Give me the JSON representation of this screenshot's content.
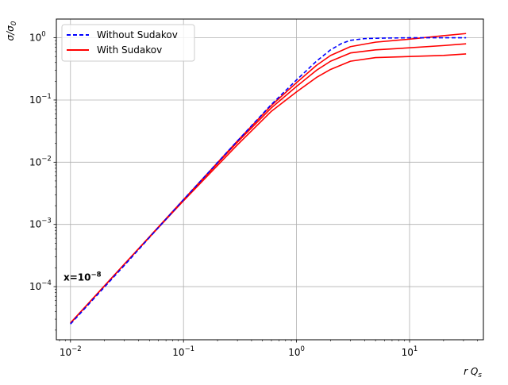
{
  "chart_data": {
    "type": "line",
    "xscale": "log",
    "yscale": "log",
    "xlim": [
      0.0075,
      45
    ],
    "ylim": [
      1.4e-05,
      2.0
    ],
    "grid": true,
    "xlabel": "r Q_s",
    "ylabel": "σ/σ_0",
    "x_ticks": [
      {
        "value": 0.01,
        "label": "10",
        "exp": "−2"
      },
      {
        "value": 0.1,
        "label": "10",
        "exp": "−1"
      },
      {
        "value": 1,
        "label": "10",
        "exp": "0"
      },
      {
        "value": 10,
        "label": "10",
        "exp": "1"
      }
    ],
    "y_ticks": [
      {
        "value": 0.0001,
        "label": "10",
        "exp": "−4"
      },
      {
        "value": 0.001,
        "label": "10",
        "exp": "−3"
      },
      {
        "value": 0.01,
        "label": "10",
        "exp": "−2"
      },
      {
        "value": 0.1,
        "label": "10",
        "exp": "−1"
      },
      {
        "value": 1,
        "label": "10",
        "exp": "0"
      }
    ],
    "legend": {
      "position": "upper-left",
      "entries": [
        {
          "label": "Without Sudakov",
          "color": "#0000ff",
          "style": "dashed"
        },
        {
          "label": "With Sudakov",
          "color": "#ff0000",
          "style": "solid"
        }
      ]
    },
    "annotation": {
      "text": "x=10",
      "exp": "−8",
      "at": [
        0.008,
        0.00014
      ]
    },
    "series": [
      {
        "name": "Without Sudakov",
        "color": "#0000ff",
        "style": "dashed",
        "x": [
          0.01,
          0.03,
          0.1,
          0.3,
          0.6,
          1.0,
          1.5,
          2.0,
          2.5,
          3.0,
          4.0,
          6.0,
          10.0,
          20.0,
          31.6
        ],
        "y": [
          2.5e-05,
          0.00022,
          0.0025,
          0.022,
          0.085,
          0.21,
          0.42,
          0.64,
          0.81,
          0.91,
          0.97,
          0.99,
          1.0,
          1.0,
          1.0
        ]
      },
      {
        "color": "#ff0000",
        "style": "solid",
        "x": [
          0.01,
          0.03,
          0.1,
          0.3,
          0.6,
          1.0,
          1.5,
          2.0,
          3.0,
          5.0,
          10.0,
          20.0,
          31.6
        ],
        "y": [
          2.6e-05,
          0.00023,
          0.0025,
          0.022,
          0.082,
          0.19,
          0.36,
          0.52,
          0.72,
          0.85,
          0.95,
          1.08,
          1.17
        ]
      },
      {
        "color": "#ff0000",
        "style": "solid",
        "x": [
          0.01,
          0.03,
          0.1,
          0.3,
          0.6,
          1.0,
          1.5,
          2.0,
          3.0,
          5.0,
          10.0,
          20.0,
          31.6
        ],
        "y": [
          2.6e-05,
          0.00023,
          0.0025,
          0.021,
          0.075,
          0.165,
          0.3,
          0.42,
          0.57,
          0.64,
          0.69,
          0.75,
          0.8
        ]
      },
      {
        "color": "#ff0000",
        "style": "solid",
        "x": [
          0.01,
          0.03,
          0.1,
          0.3,
          0.6,
          1.0,
          1.5,
          2.0,
          3.0,
          5.0,
          10.0,
          20.0,
          31.6
        ],
        "y": [
          2.6e-05,
          0.00023,
          0.0024,
          0.019,
          0.066,
          0.135,
          0.23,
          0.31,
          0.42,
          0.48,
          0.5,
          0.52,
          0.55
        ]
      }
    ]
  }
}
